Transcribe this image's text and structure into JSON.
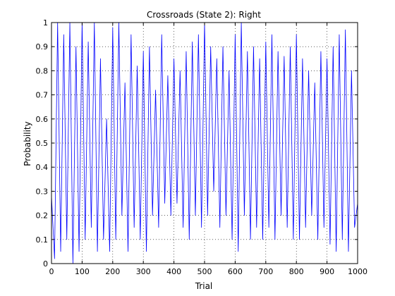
{
  "chart_data": {
    "type": "line",
    "title": "Crossroads (State 2): Right",
    "xlabel": "Trial",
    "ylabel": "Probability",
    "xlim": [
      0,
      1000
    ],
    "ylim": [
      0,
      1
    ],
    "grid": true,
    "x_ticks": [
      "0",
      "100",
      "200",
      "300",
      "400",
      "500",
      "600",
      "700",
      "800",
      "900",
      "1000"
    ],
    "y_ticks": [
      "0",
      "0.1",
      "0.2",
      "0.3",
      "0.4",
      "0.5",
      "0.6",
      "0.7",
      "0.8",
      "0.9",
      "1"
    ],
    "colors": {
      "series": "#0000ff",
      "axes": "#000000",
      "grid": "#000000"
    },
    "series": [
      {
        "x": [
          0,
          10,
          20,
          30,
          40,
          50,
          60,
          70,
          80,
          90,
          100,
          110,
          120,
          130,
          140,
          150,
          160,
          170,
          180,
          190,
          200,
          210,
          220,
          230,
          240,
          250,
          260,
          270,
          280,
          290,
          300,
          310,
          320,
          330,
          340,
          350,
          360,
          370,
          380,
          390,
          400,
          410,
          420,
          430,
          440,
          450,
          460,
          470,
          480,
          490,
          500,
          510,
          520,
          530,
          540,
          550,
          560,
          570,
          580,
          590,
          600,
          610,
          620,
          630,
          640,
          650,
          660,
          670,
          680,
          690,
          700,
          710,
          720,
          730,
          740,
          750,
          760,
          770,
          780,
          790,
          800,
          810,
          820,
          830,
          840,
          850,
          860,
          870,
          880,
          890,
          900,
          910,
          920,
          930,
          940,
          950,
          960,
          970,
          980,
          990,
          1000
        ],
        "y": [
          0.28,
          0.02,
          1.0,
          0.05,
          0.95,
          0.1,
          1.0,
          0.0,
          0.9,
          0.05,
          1.0,
          0.1,
          0.92,
          0.15,
          1.0,
          0.05,
          0.85,
          0.1,
          0.6,
          0.05,
          0.98,
          0.1,
          1.0,
          0.2,
          0.75,
          0.05,
          0.95,
          0.15,
          0.82,
          0.1,
          0.88,
          0.05,
          0.9,
          0.2,
          0.72,
          0.15,
          0.95,
          0.25,
          0.78,
          0.2,
          0.85,
          0.25,
          0.8,
          0.15,
          0.88,
          0.1,
          0.92,
          0.2,
          0.95,
          0.15,
          1.0,
          0.2,
          0.9,
          0.3,
          0.85,
          0.15,
          0.9,
          0.2,
          0.8,
          0.1,
          0.95,
          0.05,
          1.0,
          0.2,
          0.88,
          0.1,
          0.9,
          0.15,
          0.85,
          0.1,
          0.92,
          0.15,
          0.95,
          0.1,
          0.88,
          0.2,
          0.86,
          0.15,
          0.9,
          0.1,
          0.95,
          0.1,
          0.85,
          0.15,
          0.8,
          0.2,
          0.75,
          0.1,
          0.88,
          0.15,
          0.85,
          0.08,
          0.9,
          0.05,
          0.95,
          0.1,
          0.97,
          0.05,
          0.8,
          0.15,
          0.25
        ]
      }
    ]
  }
}
